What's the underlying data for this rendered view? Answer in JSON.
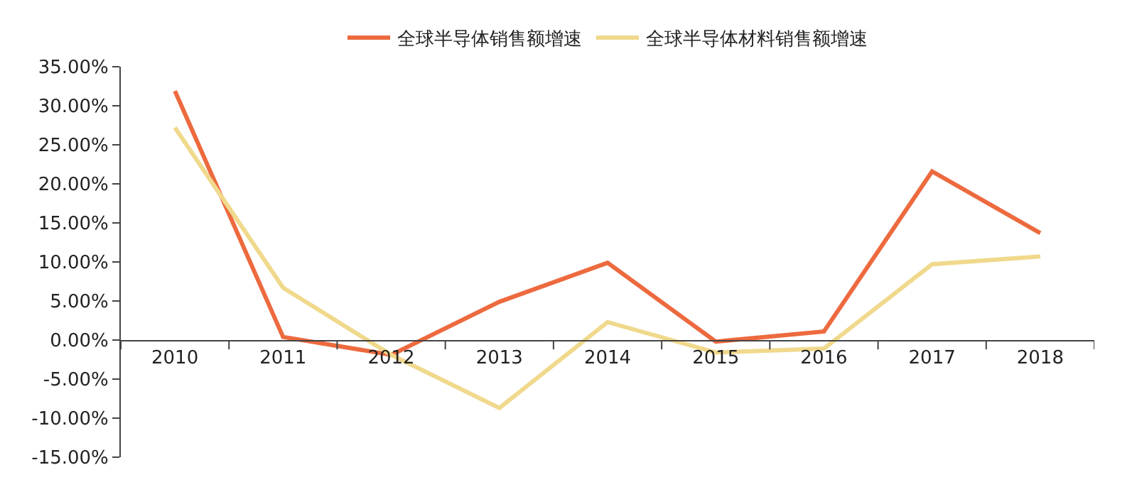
{
  "chart_data": {
    "type": "line",
    "categories": [
      "2010",
      "2011",
      "2012",
      "2013",
      "2014",
      "2015",
      "2016",
      "2017",
      "2018"
    ],
    "series": [
      {
        "name": "全球半导体销售额增速",
        "color": "#ed6a3f",
        "values": [
          31.9,
          0.4,
          -1.9,
          4.9,
          9.9,
          -0.2,
          1.1,
          21.6,
          13.7
        ]
      },
      {
        "name": "全球半导体材料销售额增速",
        "color": "#f0d98c",
        "values": [
          27.2,
          6.7,
          -1.9,
          -8.7,
          2.3,
          -1.6,
          -1.1,
          9.7,
          10.7
        ]
      }
    ],
    "ylim": [
      -15,
      35
    ],
    "yticks": [
      {
        "value": -15,
        "label": "-15.00%"
      },
      {
        "value": -10,
        "label": "-10.00%"
      },
      {
        "value": -5,
        "label": "-5.00%"
      },
      {
        "value": 0,
        "label": "0.00%"
      },
      {
        "value": 5,
        "label": "5.00%"
      },
      {
        "value": 10,
        "label": "10.00%"
      },
      {
        "value": 15,
        "label": "15.00%"
      },
      {
        "value": 20,
        "label": "20.00%"
      },
      {
        "value": 25,
        "label": "25.00%"
      },
      {
        "value": 30,
        "label": "30.00%"
      },
      {
        "value": 35,
        "label": "35.00%"
      }
    ],
    "legend": "top",
    "marker": "none",
    "line_style": "solid"
  }
}
